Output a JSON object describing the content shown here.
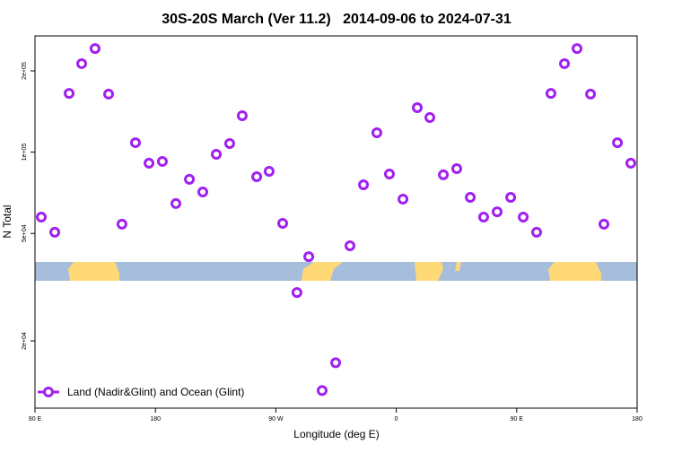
{
  "chart_data": {
    "type": "scatter",
    "title": "30S-20S March (Ver 11.2)   2014-09-06 to 2024-07-31",
    "x_label": "Longitude (deg E)",
    "y_label": "N Total",
    "ylog": true,
    "legend_position": "bottom-left",
    "xlim": [
      90,
      540
    ],
    "xticks": [
      {
        "value": 90,
        "label": "90 E"
      },
      {
        "value": 180,
        "label": "180"
      },
      {
        "value": 270,
        "label": "90 W"
      },
      {
        "value": 360,
        "label": "0"
      },
      {
        "value": 450,
        "label": "90 E"
      },
      {
        "value": 540,
        "label": "180"
      }
    ],
    "ylim": [
      11270,
      269500
    ],
    "yticks": [
      {
        "value": 20000,
        "label": "2e+04"
      },
      {
        "value": 50000,
        "label": "5e+04"
      },
      {
        "value": 100000,
        "label": "1e+05"
      },
      {
        "value": 200000,
        "label": "2e+05"
      }
    ],
    "series": [
      {
        "name": "Land (Nadir&Glint) and Ocean (Glint)",
        "color": "#a020f0",
        "x": [
          94.7,
          104.8,
          115.5,
          124.9,
          134.9,
          145,
          155,
          165.1,
          175.2,
          185.2,
          195.3,
          205.4,
          215.4,
          225.5,
          235.5,
          244.9,
          255.7,
          265,
          275.1,
          285.8,
          294.6,
          304.6,
          314.7,
          325.4,
          335.5,
          345.5,
          354.9,
          365,
          375.7,
          385.1,
          395.2,
          405.2,
          415.3,
          425.3,
          435.4,
          445.5,
          454.9,
          464.9,
          475.6,
          485.7,
          495.1,
          505.2,
          515.2,
          525.3,
          535.3
        ],
        "values": [
          57500,
          50500,
          165000,
          212700,
          242000,
          164000,
          54100,
          108400,
          91000,
          92400,
          64500,
          79300,
          71200,
          98200,
          107600,
          136400,
          81100,
          84900,
          54500,
          30200,
          41000,
          13100,
          16600,
          45000,
          75700,
          118000,
          83000,
          67000,
          146200,
          134300,
          82400,
          86900,
          68000,
          57500,
          60100,
          68000,
          57500,
          50500,
          165000,
          212700,
          242000,
          164000,
          54100,
          108400,
          91000
        ]
      }
    ]
  }
}
